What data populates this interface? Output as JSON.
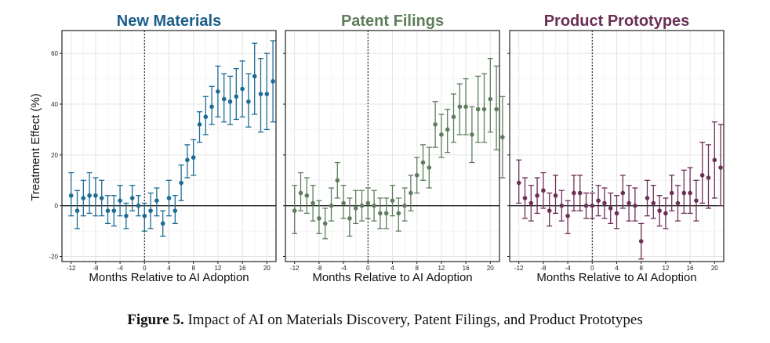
{
  "figure": {
    "y_axis_label": "Treatment Effect (%)",
    "caption_label": "Figure 5.",
    "caption_text": "Impact of AI on Materials Discovery, Patent Filings, and Product Prototypes"
  },
  "chart_data": [
    {
      "type": "scatter",
      "title": "New Materials",
      "title_color": "#1a5e8a",
      "color": "#1d6b94",
      "xlabel": "Months Relative to AI Adoption",
      "ylabel": "Treatment Effect (%)",
      "xlim": [
        -13.5,
        21.5
      ],
      "ylim": [
        -22,
        69
      ],
      "xticks": [
        -12,
        -8,
        -4,
        0,
        4,
        8,
        12,
        16,
        20
      ],
      "xtick_labels": [
        "-12",
        "-8",
        "-4",
        "0",
        "4",
        "8",
        "12",
        "16",
        "20"
      ],
      "yticks": [
        -20,
        0,
        20,
        40,
        60
      ],
      "ytick_labels": [
        "-20",
        "0",
        "20",
        "40",
        "60"
      ],
      "reference_lines": {
        "vertical_x": 0,
        "horizontal_y": 0
      },
      "series": [
        {
          "name": "New Materials",
          "x": [
            -12,
            -11,
            -10,
            -9,
            -8,
            -7,
            -6,
            -5,
            -4,
            -3,
            -2,
            -1,
            0,
            1,
            2,
            3,
            4,
            5,
            6,
            7,
            8,
            9,
            10,
            11,
            12,
            13,
            14,
            15,
            16,
            17,
            18,
            19,
            20,
            21
          ],
          "y": [
            4,
            -2,
            3,
            4,
            4,
            3,
            -2,
            -2,
            2,
            -4,
            3,
            0,
            -4,
            -2,
            2,
            -7,
            3,
            -2,
            9,
            18,
            19,
            32,
            35,
            39,
            45,
            42,
            41,
            43,
            46,
            41,
            51,
            44,
            44,
            49
          ],
          "lower": [
            -4,
            -9,
            -4,
            -3,
            -4,
            -4,
            -7,
            -8,
            -4,
            -9,
            -2,
            -4,
            -10,
            -9,
            -4,
            -12,
            -4,
            -7,
            2,
            11,
            12,
            25,
            28,
            32,
            35,
            33,
            32,
            34,
            35,
            31,
            36,
            29,
            30,
            33
          ],
          "upper": [
            13,
            6,
            10,
            13,
            11,
            10,
            4,
            4,
            8,
            1,
            8,
            4,
            1,
            5,
            7,
            -2,
            10,
            4,
            16,
            24,
            26,
            37,
            43,
            47,
            55,
            52,
            51,
            54,
            57,
            52,
            64,
            58,
            60,
            65
          ]
        }
      ]
    },
    {
      "type": "scatter",
      "title": "Patent Filings",
      "title_color": "#5d7d5b",
      "color": "#5e7d5c",
      "xlabel": "Months Relative to AI Adoption",
      "ylabel": "Treatment Effect (%)",
      "xlim": [
        -13.5,
        21.5
      ],
      "ylim": [
        -22,
        69
      ],
      "xticks": [
        -12,
        -8,
        -4,
        0,
        4,
        8,
        12,
        16,
        20
      ],
      "xtick_labels": [
        "-12",
        "-8",
        "-4",
        "0",
        "4",
        "8",
        "12",
        "16",
        "20"
      ],
      "yticks": [
        -20,
        0,
        20,
        40,
        60
      ],
      "ytick_labels": [
        "-20",
        "0",
        "20",
        "40",
        "60"
      ],
      "reference_lines": {
        "vertical_x": 0,
        "horizontal_y": 0
      },
      "series": [
        {
          "name": "Patent Filings",
          "x": [
            -12,
            -11,
            -10,
            -9,
            -8,
            -7,
            -6,
            -5,
            -4,
            -3,
            -2,
            -1,
            0,
            1,
            2,
            3,
            4,
            5,
            6,
            7,
            8,
            9,
            10,
            11,
            12,
            13,
            14,
            15,
            16,
            17,
            18,
            19,
            20,
            21
          ],
          "y": [
            -2,
            5,
            4,
            1,
            -5,
            -7,
            0,
            10,
            1,
            -5,
            -1,
            0,
            1,
            0,
            -3,
            -3,
            2,
            -3,
            0,
            5,
            12,
            17,
            15,
            32,
            28,
            30,
            35,
            39,
            39,
            28,
            38,
            38,
            42,
            38
          ],
          "lower": [
            -11,
            -2,
            -3,
            -6,
            -11,
            -13,
            -6,
            3,
            -5,
            -12,
            -7,
            -6,
            -5,
            -6,
            -9,
            -9,
            -4,
            -10,
            -6,
            -2,
            5,
            10,
            7,
            23,
            19,
            21,
            25,
            28,
            28,
            17,
            25,
            25,
            29,
            22
          ],
          "upper": [
            8,
            13,
            11,
            8,
            2,
            -1,
            7,
            17,
            8,
            3,
            6,
            6,
            7,
            6,
            3,
            3,
            8,
            3,
            7,
            12,
            19,
            24,
            23,
            41,
            36,
            38,
            44,
            48,
            50,
            39,
            51,
            52,
            58,
            55
          ]
        }
      ]
    },
    {
      "type": "scatter",
      "title": "Product Prototypes",
      "title_color": "#6a2f56",
      "color": "#6d2f58",
      "xlabel": "Months Relative to AI Adoption",
      "ylabel": "Treatment Effect (%)",
      "xlim": [
        -13.5,
        21.5
      ],
      "ylim": [
        -22,
        69
      ],
      "xticks": [
        -12,
        -8,
        -4,
        0,
        4,
        8,
        12,
        16,
        20
      ],
      "xtick_labels": [
        "-12",
        "-8",
        "-4",
        "0",
        "4",
        "8",
        "12",
        "16",
        "20"
      ],
      "yticks": [
        -20,
        0,
        20,
        40,
        60
      ],
      "ytick_labels": [
        "-20",
        "0",
        "20",
        "40",
        "60"
      ],
      "reference_lines": {
        "vertical_x": 0,
        "horizontal_y": 0
      },
      "series": [
        {
          "name": "Product Prototypes",
          "x": [
            -12,
            -11,
            -10,
            -9,
            -8,
            -7,
            -6,
            -5,
            -4,
            -3,
            -2,
            -1,
            0,
            1,
            2,
            3,
            4,
            5,
            6,
            7,
            8,
            9,
            10,
            11,
            12,
            13,
            14,
            15,
            16,
            17,
            18,
            19,
            20,
            21
          ],
          "y": [
            9,
            3,
            1,
            4,
            6,
            -2,
            4,
            0,
            -4,
            5,
            5,
            0,
            0,
            2,
            1,
            -1,
            -3,
            5,
            1,
            0,
            -14,
            3,
            1,
            -2,
            -3,
            5,
            1,
            5,
            5,
            2,
            12,
            11,
            18,
            15
          ],
          "lower": [
            1,
            -5,
            -6,
            -3,
            -1,
            -8,
            -3,
            -6,
            -11,
            -2,
            -2,
            -5,
            -5,
            -4,
            -5,
            -7,
            -9,
            -1,
            -6,
            -6,
            -21,
            -4,
            -5,
            -8,
            -9,
            -2,
            -6,
            -3,
            -3,
            -6,
            1,
            -1,
            3,
            0
          ],
          "upper": [
            18,
            11,
            8,
            11,
            13,
            5,
            12,
            6,
            2,
            12,
            12,
            5,
            5,
            8,
            7,
            5,
            4,
            12,
            8,
            7,
            -7,
            10,
            8,
            4,
            3,
            12,
            8,
            14,
            15,
            10,
            25,
            24,
            33,
            32
          ]
        }
      ]
    }
  ],
  "extra_points": [
    {
      "panel": 2,
      "x": 22,
      "y": 27,
      "lower": 11,
      "upper": 43
    }
  ]
}
